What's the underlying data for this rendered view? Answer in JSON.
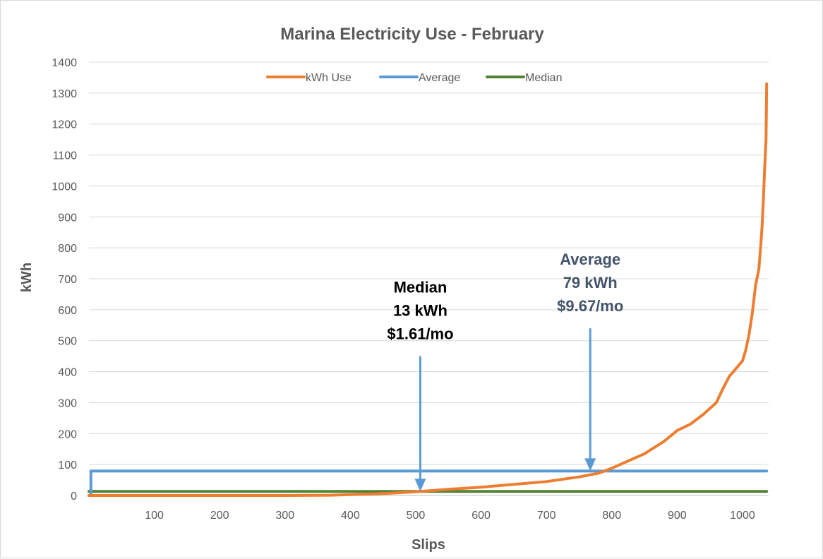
{
  "chart_data": {
    "type": "line",
    "title": "Marina Electricity Use - February",
    "xlabel": "Slips",
    "ylabel": "kWh",
    "xlim": [
      0,
      1040
    ],
    "ylim": [
      0,
      1400
    ],
    "x_ticks": [
      100,
      200,
      300,
      400,
      500,
      600,
      700,
      800,
      900,
      1000
    ],
    "y_ticks": [
      0,
      100,
      200,
      300,
      400,
      500,
      600,
      700,
      800,
      900,
      1000,
      1100,
      1200,
      1300,
      1400
    ],
    "grid": true,
    "legend_position": "top",
    "series": [
      {
        "name": "kWh Use",
        "color": "#ed7d31",
        "x": [
          0,
          100,
          200,
          300,
          370,
          420,
          460,
          500,
          550,
          600,
          650,
          700,
          750,
          780,
          800,
          850,
          880,
          900,
          920,
          940,
          960,
          970,
          980,
          990,
          1000,
          1005,
          1010,
          1015,
          1020,
          1025,
          1028,
          1030,
          1032,
          1034,
          1036,
          1037
        ],
        "y": [
          0,
          0,
          0,
          0,
          1,
          4,
          7,
          12,
          20,
          27,
          36,
          45,
          60,
          72,
          88,
          135,
          175,
          210,
          230,
          262,
          300,
          345,
          385,
          410,
          435,
          470,
          520,
          590,
          680,
          730,
          810,
          870,
          960,
          1060,
          1150,
          1330
        ]
      },
      {
        "name": "Average",
        "color": "#5b9bd5",
        "x": [
          0,
          3,
          3,
          1037
        ],
        "y": [
          0,
          0,
          79,
          79
        ]
      },
      {
        "name": "Median",
        "color": "#548235",
        "x": [
          0,
          1037
        ],
        "y": [
          13,
          13
        ]
      }
    ],
    "annotations": [
      {
        "id": "median",
        "lines": [
          "Median",
          "13 kWh",
          "$1.61/mo"
        ],
        "arrow_x": 507,
        "arrow_from_y": 450,
        "arrow_to_y": 13,
        "arrow_color": "#5b9bd5"
      },
      {
        "id": "average",
        "lines": [
          "Average",
          "79 kWh",
          "$9.67/mo"
        ],
        "arrow_x": 767,
        "arrow_from_y": 540,
        "arrow_to_y": 79,
        "arrow_color": "#5b9bd5"
      }
    ]
  }
}
